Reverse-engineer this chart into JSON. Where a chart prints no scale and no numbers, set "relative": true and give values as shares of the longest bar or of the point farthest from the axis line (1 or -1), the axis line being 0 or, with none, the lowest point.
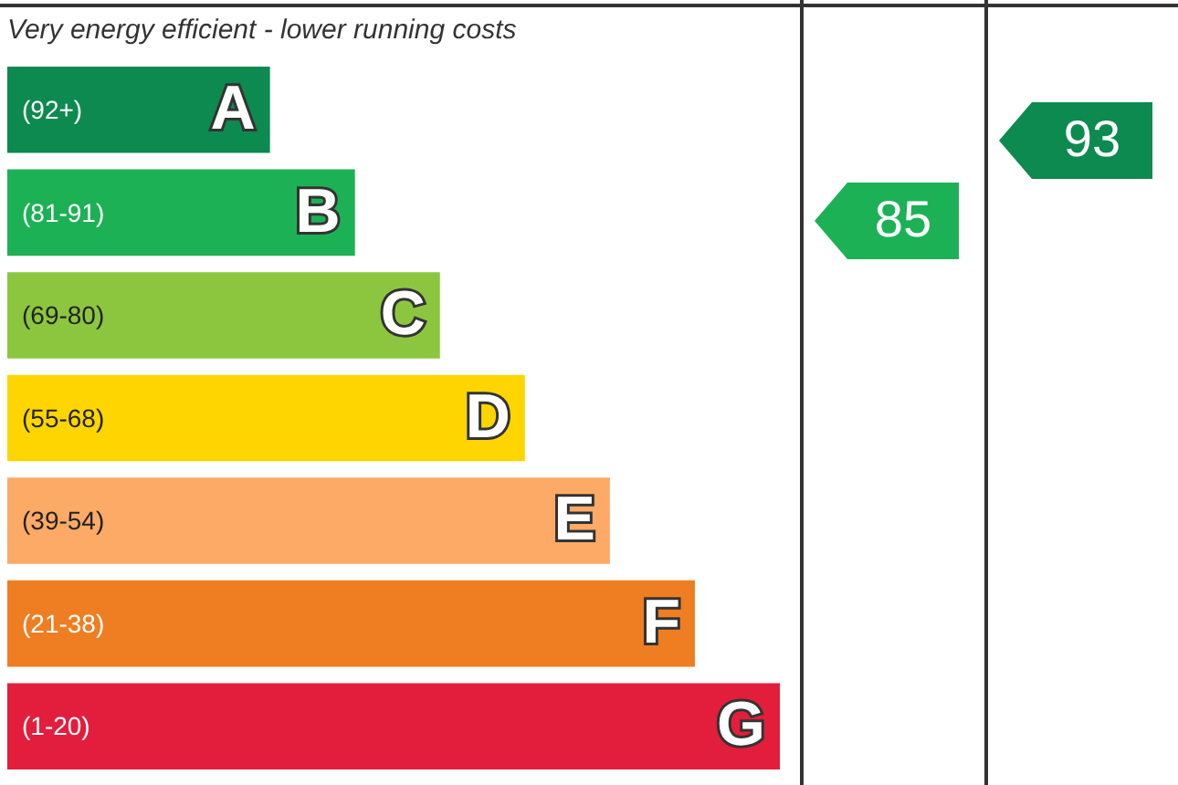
{
  "chart_data": {
    "type": "bar",
    "orientation": "horizontal",
    "relative": true,
    "title": "Very energy efficient - lower running costs",
    "categories": [
      "(92+)",
      "(81-91)",
      "(69-80)",
      "(55-68)",
      "(39-54)",
      "(21-38)",
      "(1-20)"
    ],
    "values": [
      0.34,
      0.45,
      0.56,
      0.67,
      0.78,
      0.89,
      1
    ],
    "colors": [
      "#0c8a4f",
      "#1db156",
      "#8cc63f",
      "#ffd500",
      "#fcaa65",
      "#ef7d22",
      "#e31d3c"
    ],
    "annotations": [
      "85",
      "93",
      {
        "text": "A",
        "y": "(92+)"
      },
      {
        "text": "B",
        "y": "(81-91)"
      },
      {
        "text": "C",
        "y": "(69-80)"
      },
      {
        "text": "D",
        "y": "(55-68)"
      },
      {
        "text": "E",
        "y": "(39-54)"
      },
      {
        "text": "F",
        "y": "(21-38)"
      },
      {
        "text": "G",
        "y": "(1-20)"
      }
    ],
    "legend": false
  }
}
